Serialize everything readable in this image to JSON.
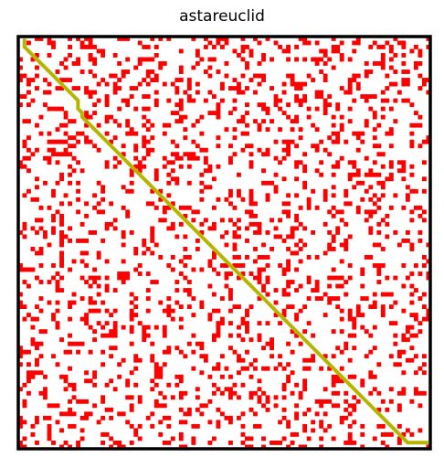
{
  "title": "astareuclid",
  "grid": {
    "rows": 100,
    "cols": 100,
    "obstacle_density": 0.2,
    "seed": 20241
  },
  "colors": {
    "obstacle": "#ff0000",
    "path": "#b5b500",
    "free": "#ffffff",
    "border": "#000000"
  },
  "path_cells": [
    [
      1,
      0
    ],
    [
      1,
      1
    ],
    [
      1,
      2
    ],
    [
      2,
      3
    ],
    [
      3,
      4
    ],
    [
      4,
      5
    ],
    [
      5,
      6
    ],
    [
      6,
      7
    ],
    [
      7,
      8
    ],
    [
      8,
      9
    ],
    [
      9,
      10
    ],
    [
      10,
      11
    ],
    [
      11,
      12
    ],
    [
      12,
      13
    ],
    [
      13,
      14
    ],
    [
      14,
      15
    ],
    [
      14,
      16
    ],
    [
      14,
      17
    ],
    [
      15,
      18
    ],
    [
      15,
      19
    ],
    [
      16,
      20
    ],
    [
      17,
      21
    ],
    [
      18,
      22
    ],
    [
      19,
      23
    ],
    [
      20,
      24
    ],
    [
      21,
      25
    ],
    [
      22,
      26
    ],
    [
      23,
      27
    ],
    [
      24,
      28
    ],
    [
      25,
      29
    ],
    [
      26,
      30
    ],
    [
      27,
      31
    ],
    [
      28,
      32
    ],
    [
      29,
      33
    ],
    [
      30,
      34
    ],
    [
      31,
      35
    ],
    [
      32,
      36
    ],
    [
      33,
      37
    ],
    [
      34,
      38
    ],
    [
      35,
      39
    ],
    [
      36,
      40
    ],
    [
      37,
      41
    ],
    [
      38,
      42
    ],
    [
      39,
      43
    ],
    [
      40,
      44
    ],
    [
      41,
      45
    ],
    [
      42,
      46
    ],
    [
      43,
      47
    ],
    [
      44,
      48
    ],
    [
      45,
      49
    ],
    [
      46,
      50
    ],
    [
      47,
      51
    ],
    [
      48,
      52
    ],
    [
      49,
      53
    ],
    [
      50,
      54
    ],
    [
      51,
      55
    ],
    [
      52,
      56
    ],
    [
      53,
      57
    ],
    [
      54,
      58
    ],
    [
      55,
      59
    ],
    [
      56,
      60
    ],
    [
      57,
      61
    ],
    [
      58,
      62
    ],
    [
      59,
      63
    ],
    [
      60,
      64
    ],
    [
      61,
      65
    ],
    [
      62,
      66
    ],
    [
      63,
      67
    ],
    [
      64,
      68
    ],
    [
      65,
      69
    ],
    [
      66,
      70
    ],
    [
      67,
      71
    ],
    [
      68,
      72
    ],
    [
      69,
      73
    ],
    [
      70,
      74
    ],
    [
      71,
      75
    ],
    [
      72,
      76
    ],
    [
      73,
      77
    ],
    [
      74,
      78
    ],
    [
      75,
      79
    ],
    [
      76,
      80
    ],
    [
      77,
      81
    ],
    [
      78,
      82
    ],
    [
      79,
      83
    ],
    [
      80,
      84
    ],
    [
      81,
      85
    ],
    [
      82,
      86
    ],
    [
      83,
      87
    ],
    [
      84,
      88
    ],
    [
      85,
      89
    ],
    [
      86,
      90
    ],
    [
      87,
      91
    ],
    [
      88,
      92
    ],
    [
      89,
      93
    ],
    [
      90,
      94
    ],
    [
      91,
      95
    ],
    [
      92,
      96
    ],
    [
      93,
      97
    ],
    [
      94,
      98
    ],
    [
      95,
      98
    ],
    [
      96,
      98
    ],
    [
      97,
      98
    ],
    [
      98,
      98
    ],
    [
      99,
      98
    ]
  ]
}
